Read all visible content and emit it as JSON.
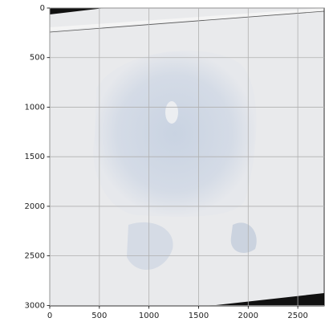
{
  "chart_data": {
    "type": "image",
    "xlim": [
      0,
      2766
    ],
    "ylim": [
      3005,
      0
    ],
    "xticks": [
      0,
      500,
      1000,
      1500,
      2000,
      2500
    ],
    "yticks": [
      0,
      500,
      1000,
      1500,
      2000,
      2500,
      3000
    ],
    "grid": true
  }
}
